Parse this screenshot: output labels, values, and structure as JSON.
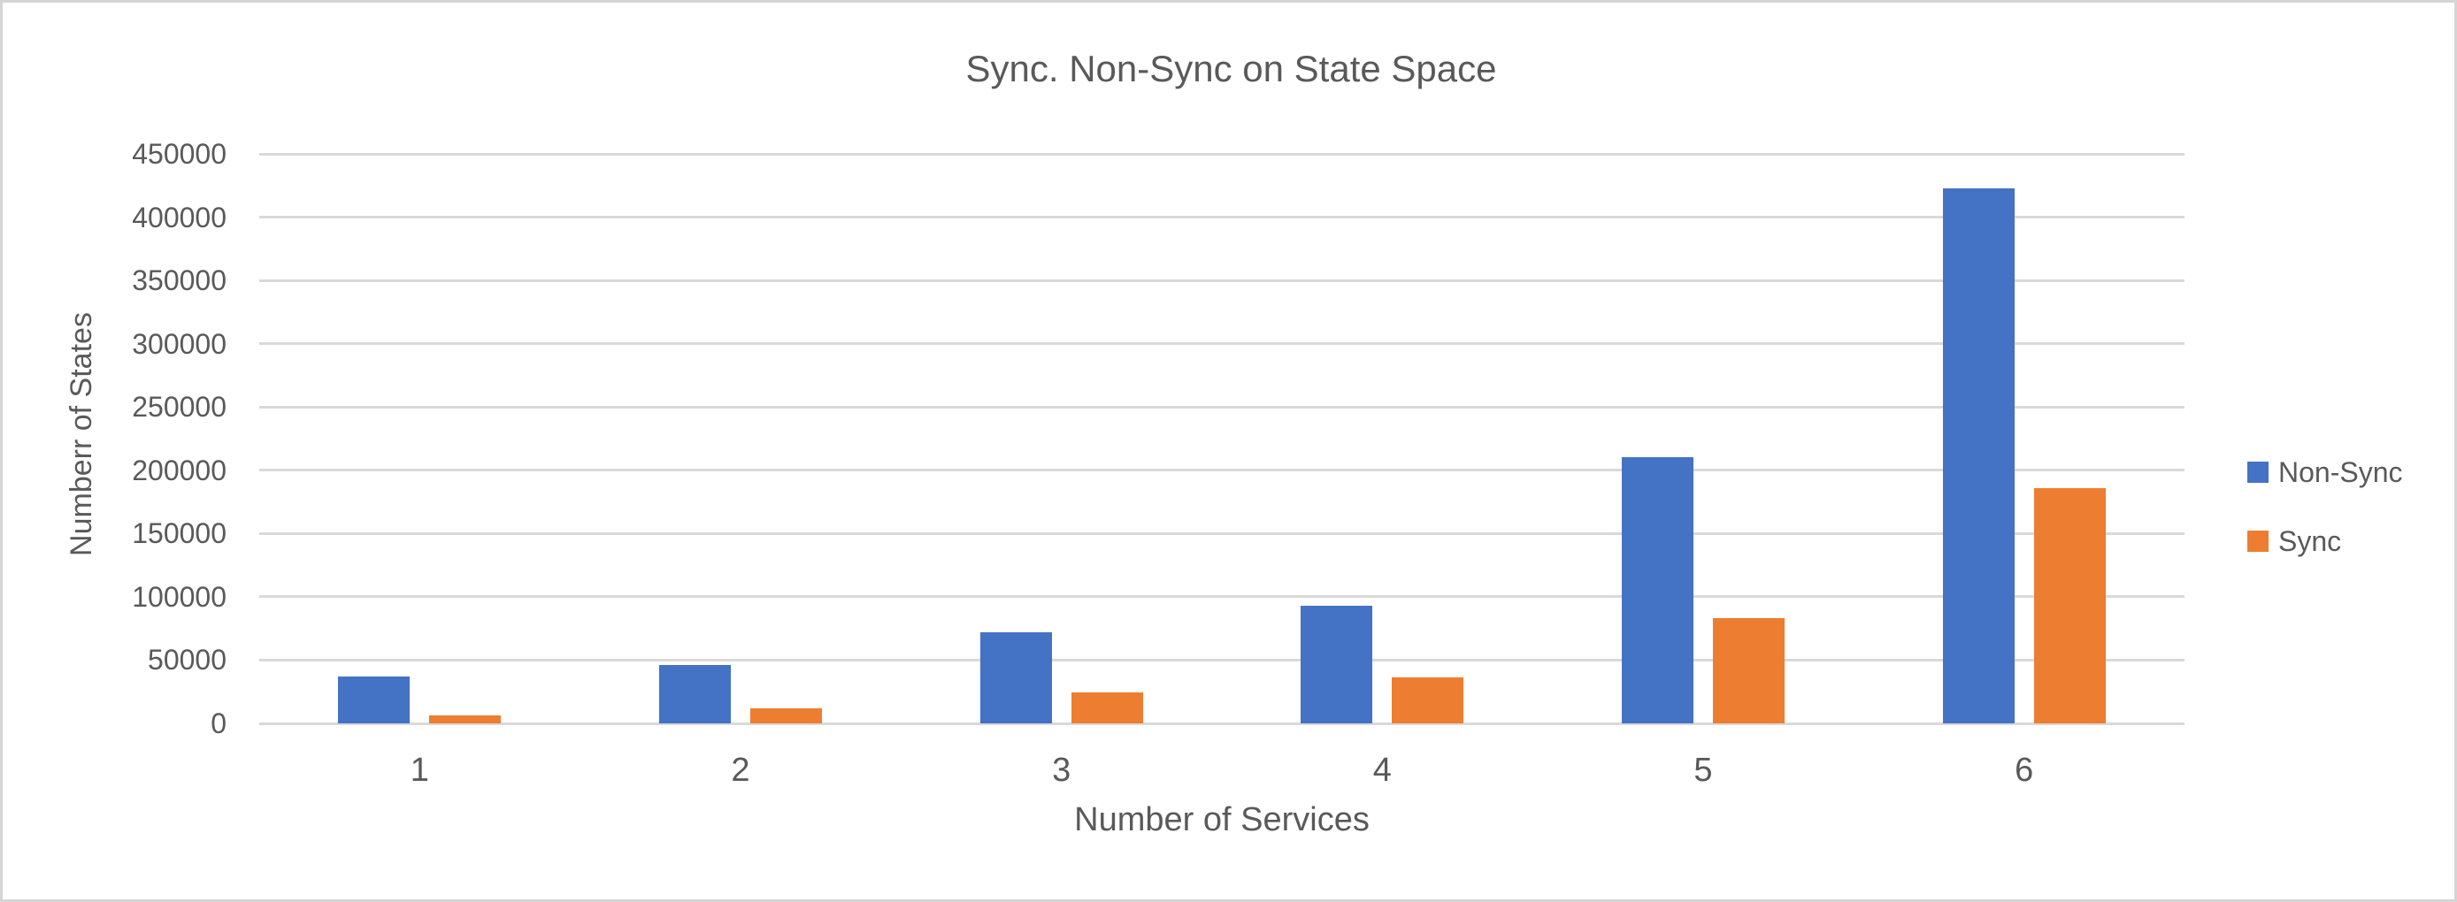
{
  "chart_data": {
    "type": "bar",
    "title": "Sync. Non-Sync on State Space",
    "xlabel": "Number of Services",
    "ylabel": "Numberr of States",
    "categories": [
      "1",
      "2",
      "3",
      "4",
      "5",
      "6"
    ],
    "series": [
      {
        "name": "Non-Sync",
        "color": "#4472C4",
        "values": [
          37000,
          46000,
          72000,
          93000,
          210000,
          423000
        ]
      },
      {
        "name": "Sync",
        "color": "#ED7D31",
        "values": [
          6500,
          12000,
          24500,
          36500,
          83000,
          186000
        ]
      }
    ],
    "ylim": [
      0,
      450000
    ],
    "ytick_step": 50000,
    "ytick_labels": [
      "0",
      "50000",
      "100000",
      "150000",
      "200000",
      "250000",
      "300000",
      "350000",
      "400000",
      "450000"
    ],
    "grid": "horizontal",
    "legend_position": "middle-right",
    "style": {
      "text_color": "#595959",
      "grid_color": "#D9D9D9",
      "frame_border_color": "#D5D5D5",
      "background": "#FFFFFF"
    }
  }
}
